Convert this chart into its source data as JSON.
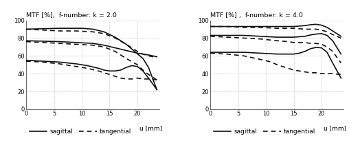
{
  "title_left": "MTF [%],  f-number: k = 2.0",
  "title_right": "MTF [%] ,  f-number: k = 4.0",
  "xlabel": "u [mm]",
  "xlim": [
    0,
    24
  ],
  "ylim": [
    0,
    100
  ],
  "xticks": [
    0,
    5,
    10,
    15,
    20
  ],
  "yticks": [
    0,
    20,
    40,
    60,
    80,
    100
  ],
  "background_color": "#ffffff",
  "grid_color": "#cccccc",
  "line_color": "#111111",
  "left_sagittal_1": [
    [
      0,
      90
    ],
    [
      3,
      90.5
    ],
    [
      6,
      91
    ],
    [
      9,
      91
    ],
    [
      10,
      91
    ],
    [
      12,
      90
    ],
    [
      14,
      87
    ],
    [
      16,
      81
    ],
    [
      18,
      73
    ],
    [
      19.5,
      65
    ],
    [
      21,
      57
    ],
    [
      22,
      47
    ],
    [
      23.5,
      22
    ]
  ],
  "left_tangential_1": [
    [
      0,
      90
    ],
    [
      3,
      89
    ],
    [
      6,
      88
    ],
    [
      9,
      88
    ],
    [
      12,
      87
    ],
    [
      14,
      85
    ],
    [
      16,
      80
    ],
    [
      18,
      73
    ],
    [
      20,
      65
    ],
    [
      21,
      62
    ],
    [
      22,
      60
    ],
    [
      23.5,
      58
    ]
  ],
  "left_sagittal_2": [
    [
      0,
      77
    ],
    [
      3,
      76.5
    ],
    [
      6,
      76
    ],
    [
      9,
      75
    ],
    [
      12,
      74
    ],
    [
      14,
      72
    ],
    [
      16,
      69
    ],
    [
      18,
      66
    ],
    [
      20,
      63
    ],
    [
      21,
      62
    ],
    [
      22,
      61
    ],
    [
      23.5,
      59
    ]
  ],
  "left_tangential_2": [
    [
      0,
      76
    ],
    [
      3,
      75
    ],
    [
      6,
      74
    ],
    [
      9,
      73
    ],
    [
      12,
      72
    ],
    [
      14,
      70
    ],
    [
      16,
      65
    ],
    [
      18,
      57
    ],
    [
      20,
      50
    ],
    [
      21,
      44
    ],
    [
      22,
      39
    ],
    [
      23.5,
      33
    ]
  ],
  "left_sagittal_3": [
    [
      0,
      55
    ],
    [
      3,
      54
    ],
    [
      6,
      53
    ],
    [
      9,
      51
    ],
    [
      11,
      49
    ],
    [
      13,
      46
    ],
    [
      14,
      44
    ],
    [
      15,
      43
    ],
    [
      16,
      43
    ],
    [
      17,
      44
    ],
    [
      18,
      47
    ],
    [
      19,
      49
    ],
    [
      20,
      48
    ],
    [
      21,
      43
    ],
    [
      22,
      35
    ],
    [
      23.5,
      22
    ]
  ],
  "left_tangential_3": [
    [
      0,
      54
    ],
    [
      3,
      53
    ],
    [
      6,
      51
    ],
    [
      9,
      48
    ],
    [
      11,
      46
    ],
    [
      13,
      43
    ],
    [
      14,
      41
    ],
    [
      15,
      39
    ],
    [
      16,
      37
    ],
    [
      17,
      35
    ],
    [
      18,
      34
    ],
    [
      19,
      34
    ],
    [
      20,
      35
    ],
    [
      21,
      34
    ],
    [
      22,
      34
    ],
    [
      23.5,
      33
    ]
  ],
  "right_sagittal_1": [
    [
      0,
      93
    ],
    [
      3,
      93
    ],
    [
      6,
      93
    ],
    [
      9,
      93
    ],
    [
      12,
      93
    ],
    [
      14,
      93
    ],
    [
      15,
      93
    ],
    [
      16,
      93.5
    ],
    [
      17,
      94
    ],
    [
      18,
      95
    ],
    [
      19,
      95.5
    ],
    [
      20,
      94.5
    ],
    [
      21,
      92
    ],
    [
      22,
      88
    ],
    [
      23.5,
      82
    ]
  ],
  "right_tangential_1": [
    [
      0,
      93
    ],
    [
      3,
      93
    ],
    [
      6,
      92
    ],
    [
      9,
      92
    ],
    [
      12,
      91
    ],
    [
      14,
      91
    ],
    [
      15,
      91
    ],
    [
      16,
      90.5
    ],
    [
      17,
      90
    ],
    [
      18,
      90
    ],
    [
      19,
      90
    ],
    [
      20,
      89
    ],
    [
      21,
      87
    ],
    [
      22,
      84
    ],
    [
      23.5,
      80
    ]
  ],
  "right_sagittal_2": [
    [
      0,
      83
    ],
    [
      3,
      83
    ],
    [
      6,
      83
    ],
    [
      9,
      82
    ],
    [
      12,
      81
    ],
    [
      14,
      81
    ],
    [
      15,
      81
    ],
    [
      16,
      81.5
    ],
    [
      17,
      82
    ],
    [
      18,
      83.5
    ],
    [
      19,
      84.5
    ],
    [
      20,
      85
    ],
    [
      21,
      83
    ],
    [
      22,
      77
    ],
    [
      23.5,
      62
    ]
  ],
  "right_tangential_2": [
    [
      0,
      82
    ],
    [
      3,
      81
    ],
    [
      6,
      80
    ],
    [
      9,
      79
    ],
    [
      12,
      77
    ],
    [
      14,
      76
    ],
    [
      15,
      75
    ],
    [
      16,
      75
    ],
    [
      17,
      75
    ],
    [
      18,
      74
    ],
    [
      19,
      74
    ],
    [
      20,
      73
    ],
    [
      21,
      70
    ],
    [
      22,
      65
    ],
    [
      23.5,
      52
    ]
  ],
  "right_sagittal_3": [
    [
      0,
      64
    ],
    [
      3,
      64
    ],
    [
      6,
      64
    ],
    [
      9,
      63
    ],
    [
      12,
      62
    ],
    [
      13,
      62
    ],
    [
      14,
      62
    ],
    [
      15,
      62
    ],
    [
      16,
      63
    ],
    [
      17,
      65
    ],
    [
      18,
      68
    ],
    [
      19,
      69.5
    ],
    [
      20,
      69
    ],
    [
      21,
      64
    ],
    [
      22,
      52
    ],
    [
      23.5,
      35
    ]
  ],
  "right_tangential_3": [
    [
      0,
      63
    ],
    [
      3,
      62
    ],
    [
      6,
      60
    ],
    [
      9,
      56
    ],
    [
      11,
      53
    ],
    [
      12,
      50
    ],
    [
      13,
      48
    ],
    [
      14,
      46
    ],
    [
      15,
      44
    ],
    [
      16,
      43
    ],
    [
      17,
      42
    ],
    [
      18,
      41
    ],
    [
      19,
      41
    ],
    [
      20,
      40
    ],
    [
      21,
      40
    ],
    [
      22,
      40
    ],
    [
      23.5,
      39
    ]
  ]
}
